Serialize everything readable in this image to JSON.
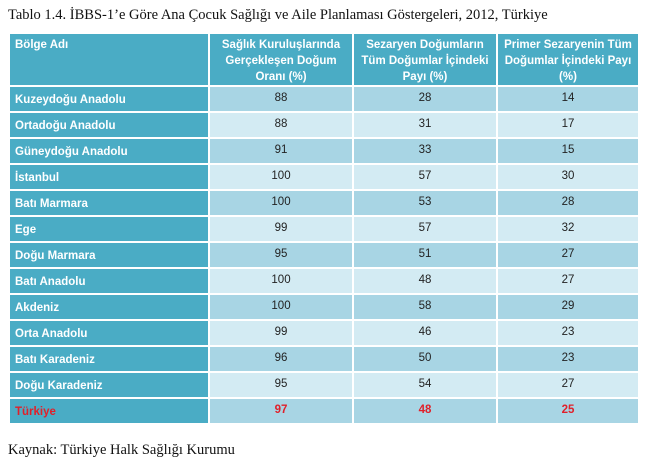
{
  "title": "Tablo 1.4. İBBS-1’e Göre Ana Çocuk Sağlığı ve Aile Planlaması Göstergeleri, 2012, Türkiye",
  "source": "Kaynak: Türkiye Halk Sağlığı Kurumu",
  "table": {
    "headers": [
      "Bölge Adı",
      "Sağlık Kuruluşlarında Gerçekleşen Doğum Oranı (%)",
      "Sezaryen Doğumların Tüm Doğumlar İçindeki Payı (%)",
      "Primer Sezaryenin Tüm Doğumlar İçindeki Payı (%)"
    ],
    "rows": [
      [
        "Kuzeydoğu Anadolu",
        "88",
        "28",
        "14"
      ],
      [
        "Ortadoğu Anadolu",
        "88",
        "31",
        "17"
      ],
      [
        "Güneydoğu Anadolu",
        "91",
        "33",
        "15"
      ],
      [
        "İstanbul",
        "100",
        "57",
        "30"
      ],
      [
        "Batı Marmara",
        "100",
        "53",
        "28"
      ],
      [
        "Ege",
        "99",
        "57",
        "32"
      ],
      [
        "Doğu Marmara",
        "95",
        "51",
        "27"
      ],
      [
        "Batı Anadolu",
        "100",
        "48",
        "27"
      ],
      [
        "Akdeniz",
        "100",
        "58",
        "29"
      ],
      [
        "Orta Anadolu",
        "99",
        "46",
        "23"
      ],
      [
        "Batı Karadeniz",
        "96",
        "50",
        "23"
      ],
      [
        "Doğu Karadeniz",
        "95",
        "54",
        "27"
      ]
    ],
    "total": [
      "Türkiye",
      "97",
      "48",
      "25"
    ]
  },
  "colors": {
    "header": "#4aacc5",
    "row_dark": "#a8d5e4",
    "row_light": "#d3ebf3",
    "total_text": "#e0202a"
  }
}
